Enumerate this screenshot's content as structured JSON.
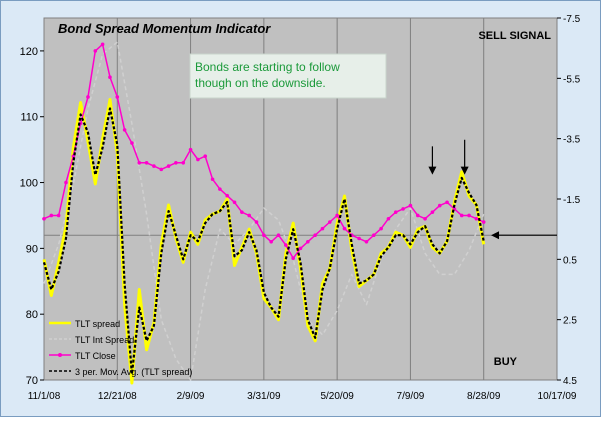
{
  "chart_data": {
    "type": "line",
    "title": "Bond Spread Momentum Indicator",
    "annotation": "Bonds are starting to follow though on the downside.",
    "signal_top": "SELL SIGNAL",
    "signal_bottom": "BUY",
    "x_tick_labels": [
      "11/1/08",
      "12/21/08",
      "2/9/09",
      "3/31/09",
      "5/20/09",
      "7/9/09",
      "8/28/09",
      "10/17/09"
    ],
    "x_range_days": [
      0,
      350
    ],
    "y_left": {
      "ticks": [
        "70",
        "80",
        "90",
        "100",
        "110",
        "120"
      ],
      "range": [
        70,
        125
      ]
    },
    "y_right": {
      "ticks": [
        "-7.5",
        "-5.5",
        "-3.5",
        "-1.5",
        "0.5",
        "2.5",
        "4.5"
      ],
      "range": [
        -7.5,
        4.5
      ],
      "inverted": true
    },
    "grid": "vertical",
    "reference_line_left": 92,
    "colors": {
      "spread": "#ffff00",
      "int_spread": "#d0d0d0",
      "close": "#ff00cc",
      "mavg": "#000000",
      "plot_bg": "#c0c0c0"
    },
    "series": [
      {
        "name": "TLT spread",
        "axis": "right",
        "style": "solid",
        "x": [
          0,
          5,
          10,
          15,
          20,
          25,
          30,
          35,
          40,
          45,
          50,
          55,
          60,
          65,
          70,
          75,
          80,
          85,
          90,
          95,
          100,
          105,
          110,
          115,
          120,
          125,
          130,
          135,
          140,
          145,
          150,
          155,
          160,
          165,
          170,
          175,
          180,
          185,
          190,
          195,
          200,
          205,
          210,
          215,
          220,
          225,
          230,
          235,
          240,
          245,
          250,
          255,
          260,
          265,
          270,
          275,
          280,
          285,
          290,
          295,
          300
        ],
        "values": [
          0.5,
          1.7,
          0.6,
          -0.6,
          -3.2,
          -4.7,
          -3.4,
          -2.0,
          -3.5,
          -4.8,
          -3.0,
          2.0,
          4.6,
          1.5,
          3.5,
          2.6,
          0.0,
          -1.3,
          -0.2,
          0.6,
          -0.4,
          0.0,
          -0.8,
          -1.0,
          -1.1,
          -1.5,
          0.7,
          0.1,
          -0.5,
          0.3,
          1.8,
          2.1,
          2.5,
          0.3,
          -0.7,
          0.8,
          2.7,
          3.2,
          1.3,
          0.8,
          -0.7,
          -1.6,
          0.2,
          1.4,
          1.2,
          1.0,
          0.3,
          0.1,
          -0.4,
          -0.3,
          0.1,
          -0.5,
          -0.6,
          0.1,
          0.3,
          -0.1,
          -1.4,
          -2.4,
          -1.6,
          -1.3,
          0.0
        ]
      },
      {
        "name": "TLT Int Spread",
        "axis": "right",
        "style": "dashed",
        "x": [
          0,
          10,
          20,
          30,
          40,
          50,
          60,
          70,
          80,
          90,
          100,
          110,
          120,
          130,
          140,
          150,
          160,
          170,
          180,
          190,
          200,
          210,
          220,
          230,
          240,
          250,
          260,
          270,
          280,
          290,
          300
        ],
        "values": [
          1.3,
          0.0,
          -2.0,
          -4.5,
          -6.3,
          -6.7,
          -4.0,
          -1.0,
          2.5,
          3.8,
          4.5,
          1.5,
          -0.5,
          0.0,
          -0.5,
          -1.2,
          -0.8,
          0.5,
          2.5,
          3.0,
          2.2,
          1.0,
          2.0,
          0.5,
          -0.5,
          -1.2,
          0.3,
          1.0,
          1.0,
          0.2,
          -1.0
        ]
      },
      {
        "name": "TLT Close",
        "axis": "left",
        "style": "marker",
        "x": [
          0,
          5,
          10,
          15,
          20,
          25,
          30,
          35,
          40,
          45,
          50,
          55,
          60,
          65,
          70,
          75,
          80,
          85,
          90,
          95,
          100,
          105,
          110,
          115,
          120,
          125,
          130,
          135,
          140,
          145,
          150,
          155,
          160,
          165,
          170,
          175,
          180,
          185,
          190,
          195,
          200,
          205,
          210,
          215,
          220,
          225,
          230,
          235,
          240,
          245,
          250,
          255,
          260,
          265,
          270,
          275,
          280,
          285,
          290,
          295,
          300
        ],
        "values": [
          94.5,
          95,
          95,
          100,
          104,
          109,
          113,
          120,
          121,
          116,
          113,
          108,
          106,
          103,
          103,
          102.5,
          102,
          102.5,
          103,
          103,
          105,
          103.5,
          104,
          100.5,
          99,
          98,
          97,
          95.5,
          95,
          94,
          92,
          91,
          92,
          90.5,
          88.5,
          90,
          91,
          92,
          93,
          94,
          95,
          93,
          92,
          91.5,
          91,
          92,
          93,
          94.5,
          95.5,
          96,
          96.5,
          95,
          94.5,
          95.5,
          96.5,
          97,
          96,
          95,
          95,
          94.5,
          94
        ]
      },
      {
        "name": "3 per. Mov. Avg. (TLT spread)",
        "axis": "right",
        "style": "dotted",
        "x": [
          0,
          5,
          10,
          15,
          20,
          25,
          30,
          35,
          40,
          45,
          50,
          55,
          60,
          65,
          70,
          75,
          80,
          85,
          90,
          95,
          100,
          105,
          110,
          115,
          120,
          125,
          130,
          135,
          140,
          145,
          150,
          155,
          160,
          165,
          170,
          175,
          180,
          185,
          190,
          195,
          200,
          205,
          210,
          215,
          220,
          225,
          230,
          235,
          240,
          245,
          250,
          255,
          260,
          265,
          270,
          275,
          280,
          285,
          290,
          295,
          300
        ],
        "values": [
          0.6,
          1.5,
          0.9,
          -0.2,
          -2.7,
          -4.3,
          -3.7,
          -2.3,
          -3.2,
          -4.5,
          -3.3,
          1.3,
          4.3,
          2.1,
          3.2,
          2.7,
          0.3,
          -1.1,
          -0.3,
          0.5,
          -0.3,
          -0.1,
          -0.7,
          -1.0,
          -1.1,
          -1.4,
          0.4,
          0.2,
          -0.4,
          0.2,
          1.6,
          2.1,
          2.4,
          0.5,
          -0.5,
          0.6,
          2.5,
          3.1,
          1.5,
          0.8,
          -0.5,
          -1.5,
          0.0,
          1.3,
          1.2,
          1.0,
          0.4,
          0.1,
          -0.3,
          -0.3,
          0.0,
          -0.4,
          -0.6,
          0.0,
          0.3,
          -0.1,
          -1.3,
          -2.2,
          -1.7,
          -1.3,
          -0.1
        ]
      }
    ],
    "arrows": [
      {
        "x": 265,
        "y_left": 105.5,
        "length_left": 4
      },
      {
        "x": 287,
        "y_left": 106.5,
        "length_left": 5
      }
    ],
    "side_arrow": {
      "y_left": 92,
      "x_from": 305,
      "x_to": 350
    }
  }
}
